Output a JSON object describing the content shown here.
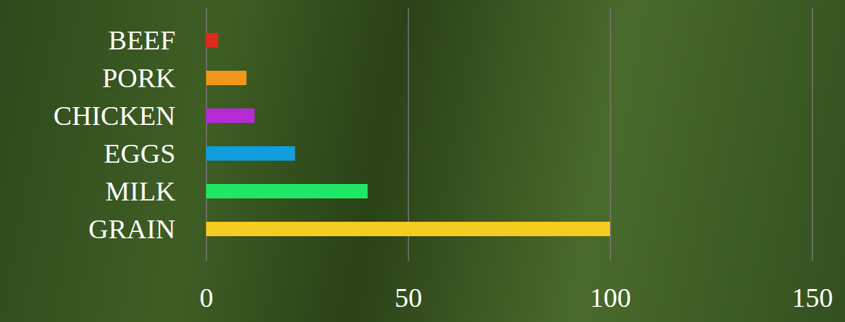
{
  "chart_data": {
    "type": "bar",
    "orientation": "horizontal",
    "categories": [
      "BEEF",
      "PORK",
      "CHICKEN",
      "EGGS",
      "MILK",
      "GRAIN"
    ],
    "values": [
      3,
      10,
      12,
      22,
      40,
      100
    ],
    "colors": [
      "#e02a1a",
      "#f0961a",
      "#b62ad6",
      "#109fdc",
      "#1fe866",
      "#f5cc20"
    ],
    "xlim": [
      0,
      150
    ],
    "xticks": [
      0,
      50,
      100,
      150
    ],
    "grid": true
  }
}
